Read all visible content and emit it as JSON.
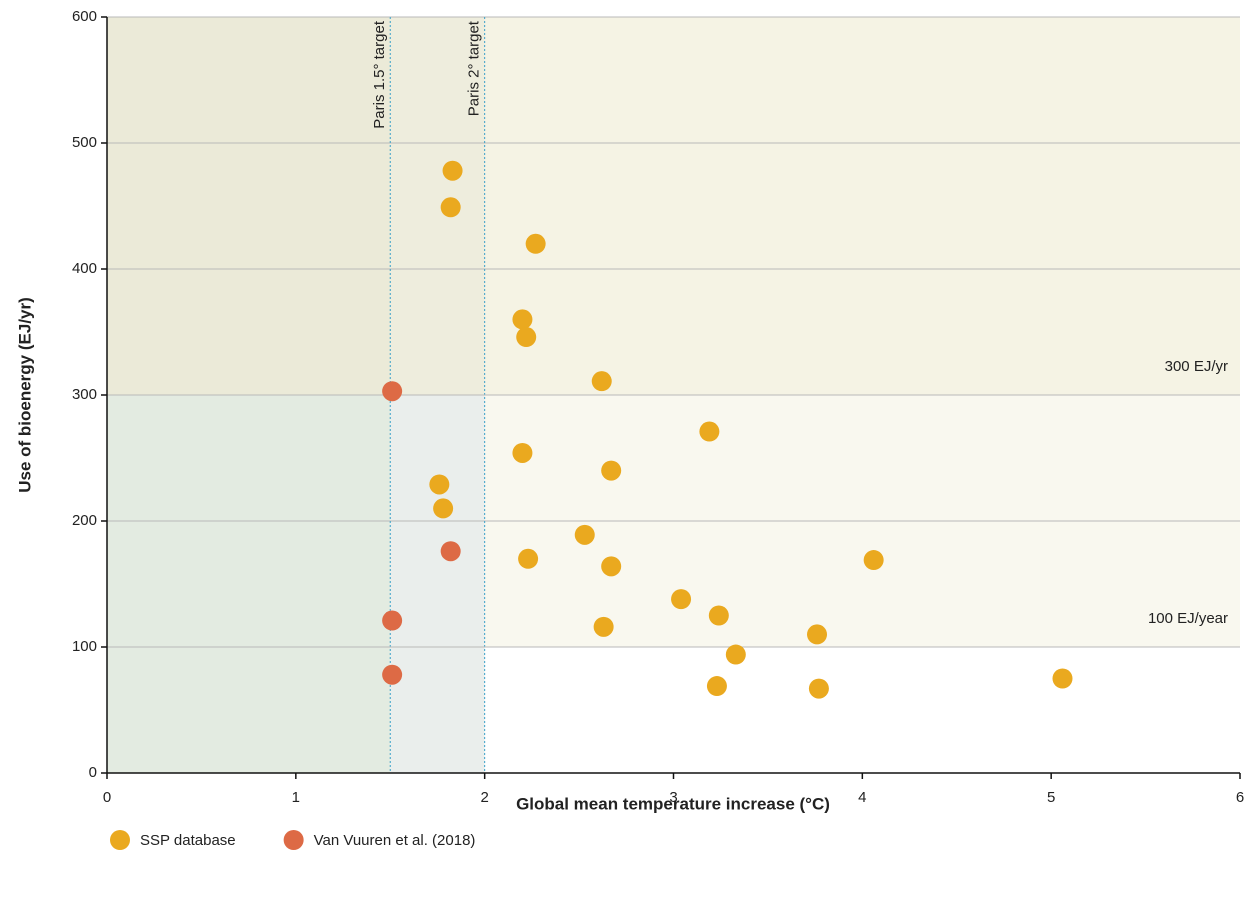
{
  "chart_data": {
    "type": "scatter",
    "x_label": "Global mean temperature increase (°C)",
    "y_label": "Use of bioenergy (EJ/yr)",
    "xlim": [
      0,
      6
    ],
    "xticks": [
      0,
      1,
      2,
      3,
      4,
      5,
      6
    ],
    "ylim": [
      0,
      600
    ],
    "yticks": [
      0,
      100,
      200,
      300,
      400,
      500,
      600
    ],
    "grid": true,
    "vlines": [
      {
        "x": 1.5,
        "label": "Paris 1.5° target"
      },
      {
        "x": 2,
        "label": "Paris 2° target"
      }
    ],
    "hlines": [
      {
        "y": 300,
        "label": "300 EJ/yr"
      },
      {
        "y": 100,
        "label": "100 EJ/year"
      }
    ],
    "legend": "bottom-left",
    "series": [
      {
        "name": "SSP database",
        "color": "#eaa91f",
        "x": [
          1.83,
          1.82,
          2.27,
          2.2,
          2.22,
          2.62,
          3.19,
          2.2,
          2.67,
          1.76,
          1.78,
          2.53,
          2.23,
          2.67,
          4.06,
          3.04,
          3.24,
          2.63,
          3.76,
          3.33,
          3.23,
          3.77,
          5.06
        ],
        "values": [
          478,
          449,
          420,
          360,
          346,
          311,
          271,
          254,
          240,
          229,
          210,
          189,
          170,
          164,
          169,
          138,
          125,
          116,
          110,
          94,
          69,
          67,
          75
        ]
      },
      {
        "name": "Van Vuuren et al. (2018)",
        "color": "#dd6a45",
        "x": [
          1.51,
          1.82,
          1.51,
          1.51
        ],
        "values": [
          303,
          176,
          121,
          78
        ]
      }
    ]
  }
}
